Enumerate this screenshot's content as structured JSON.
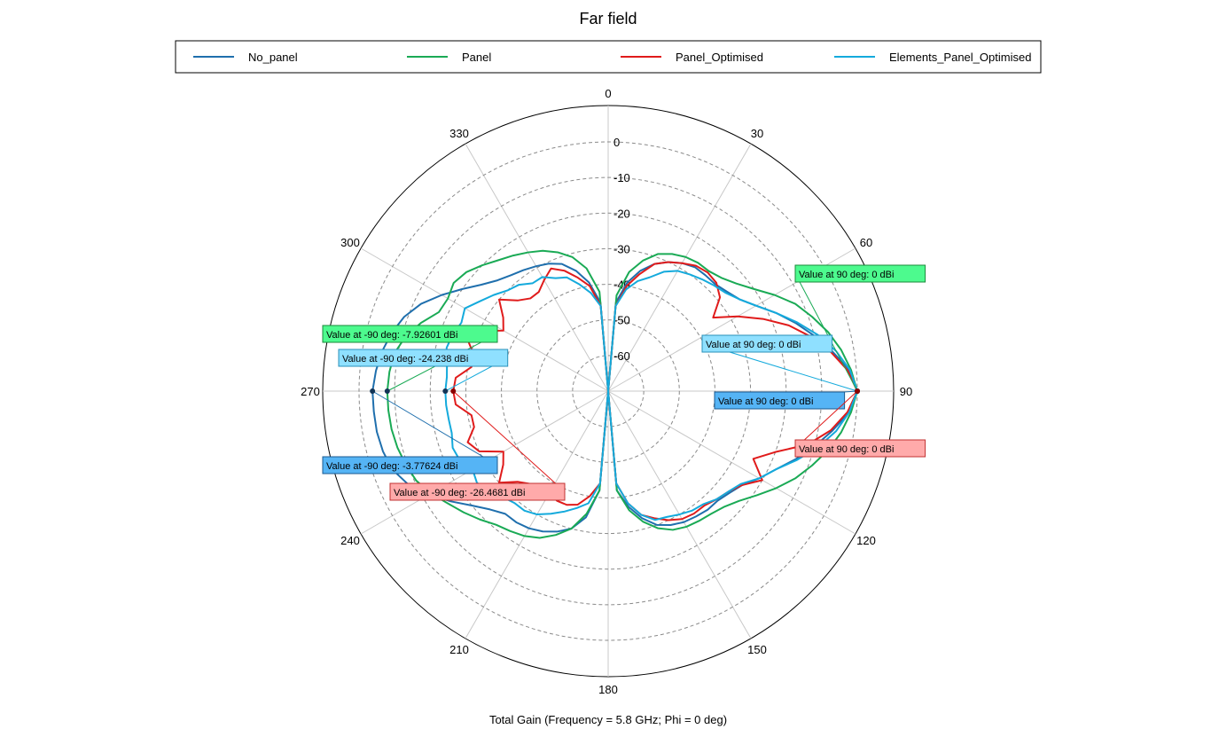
{
  "chart_data": {
    "type": "polar-line",
    "title": "Far field",
    "subtitle": "Total Gain (Frequency = 5.8 GHz; Phi = 0 deg)",
    "legend_position": "top",
    "angle_unit": "deg",
    "angle_zero": "top",
    "angle_direction": "clockwise",
    "angle_ticks": [
      0,
      30,
      60,
      90,
      120,
      150,
      180,
      210,
      240,
      270,
      300,
      330
    ],
    "radial_range": [
      -70,
      0
    ],
    "radial_ticks": [
      0,
      -10,
      -20,
      -30,
      -40,
      -50,
      -60
    ],
    "radial_tick_labels": [
      "0",
      "-10",
      "-20",
      "-30",
      "-40",
      "-50",
      "-60"
    ],
    "radial_unit": "dBi",
    "series": [
      {
        "name": "No_panel",
        "color": "#1f6fad",
        "theta": [
          0,
          5,
          10,
          15,
          20,
          25,
          30,
          35,
          40,
          45,
          50,
          55,
          60,
          65,
          70,
          75,
          80,
          85,
          90,
          95,
          100,
          105,
          110,
          115,
          120,
          125,
          130,
          135,
          140,
          145,
          150,
          155,
          160,
          165,
          170,
          175,
          180,
          185,
          190,
          195,
          200,
          205,
          210,
          215,
          220,
          225,
          230,
          235,
          240,
          245,
          250,
          255,
          260,
          265,
          270,
          275,
          280,
          285,
          290,
          295,
          300,
          305,
          310,
          315,
          320,
          325,
          330,
          335,
          340,
          345,
          350,
          355
        ],
        "gain": [
          -70,
          -45,
          -39,
          -35,
          -32,
          -30,
          -28.5,
          -27.5,
          -27.5,
          -27.5,
          -26.5,
          -25,
          -22,
          -18,
          -14,
          -10,
          -6,
          -2,
          0,
          -2,
          -6,
          -10,
          -14,
          -18,
          -21,
          -24,
          -25.5,
          -26.5,
          -26.5,
          -27,
          -27.5,
          -28.5,
          -30,
          -33,
          -37,
          -42,
          -70,
          -42,
          -34,
          -30,
          -28,
          -26.5,
          -25.5,
          -25,
          -25,
          -23,
          -20,
          -16,
          -12,
          -8,
          -5.5,
          -4.5,
          -4,
          -3.9,
          -3.78,
          -4.5,
          -5.5,
          -7,
          -9,
          -12,
          -16,
          -20,
          -23.5,
          -26,
          -27.5,
          -28.5,
          -29.5,
          -30.5,
          -32,
          -35,
          -39,
          -45
        ]
      },
      {
        "name": "Panel",
        "color": "#1aaa55",
        "theta": [
          0,
          5,
          10,
          15,
          20,
          25,
          30,
          35,
          40,
          45,
          50,
          55,
          60,
          65,
          70,
          75,
          80,
          85,
          90,
          95,
          100,
          105,
          110,
          115,
          120,
          125,
          130,
          135,
          140,
          145,
          150,
          155,
          160,
          165,
          170,
          175,
          180,
          185,
          190,
          195,
          200,
          205,
          210,
          215,
          220,
          225,
          230,
          235,
          240,
          245,
          250,
          255,
          260,
          265,
          270,
          275,
          280,
          285,
          290,
          295,
          300,
          305,
          310,
          315,
          320,
          325,
          330,
          335,
          340,
          345,
          350,
          355
        ],
        "gain": [
          -70,
          -43,
          -36,
          -32,
          -29,
          -27.5,
          -26.5,
          -26,
          -26,
          -25,
          -23,
          -20,
          -16,
          -12,
          -9,
          -6,
          -3.5,
          -1.5,
          0,
          -1.5,
          -3.5,
          -6,
          -9,
          -12,
          -15.5,
          -19,
          -22,
          -24,
          -25,
          -25.5,
          -26,
          -27,
          -29,
          -32,
          -36,
          -42,
          -70,
          -42,
          -35,
          -30,
          -27,
          -24.5,
          -23,
          -22,
          -21,
          -19,
          -17,
          -15,
          -12.5,
          -10.5,
          -9.5,
          -8.7,
          -8.2,
          -8,
          -7.93,
          -8.3,
          -9,
          -11,
          -14,
          -17.5,
          -18,
          -17,
          -18,
          -20,
          -22,
          -23.5,
          -25,
          -26.5,
          -28.5,
          -31,
          -35,
          -42
        ]
      },
      {
        "name": "Panel_Optimised",
        "color": "#e01b1b",
        "theta": [
          0,
          5,
          10,
          15,
          20,
          25,
          30,
          35,
          40,
          45,
          50,
          55,
          60,
          65,
          70,
          75,
          80,
          85,
          90,
          95,
          100,
          105,
          110,
          115,
          120,
          125,
          130,
          135,
          140,
          145,
          150,
          155,
          160,
          165,
          170,
          175,
          180,
          185,
          190,
          195,
          200,
          205,
          210,
          215,
          220,
          225,
          230,
          235,
          240,
          245,
          250,
          255,
          260,
          265,
          270,
          275,
          280,
          285,
          290,
          295,
          300,
          305,
          310,
          315,
          320,
          325,
          330,
          335,
          340,
          345,
          350,
          355
        ],
        "gain": [
          -70,
          -46,
          -40,
          -36,
          -32,
          -30,
          -28.5,
          -27,
          -26.5,
          -27,
          -29,
          -34,
          -28,
          -22,
          -16,
          -11,
          -6.5,
          -2.5,
          0,
          -2.5,
          -6.5,
          -12,
          -20,
          -25,
          -20,
          -24,
          -26,
          -27,
          -28,
          -28,
          -28.5,
          -30,
          -32,
          -34,
          -38,
          -44,
          -70,
          -44,
          -40,
          -37,
          -36,
          -36,
          -37,
          -38,
          -36,
          -34,
          -30,
          -34,
          -36,
          -30,
          -28,
          -31,
          -31,
          -27,
          -26.47,
          -27,
          -31,
          -31,
          -28,
          -30,
          -36,
          -34,
          -30,
          -34,
          -36,
          -36,
          -34,
          -32,
          -34,
          -37,
          -40,
          -46
        ]
      },
      {
        "name": "Elements_Panel_Optimised",
        "color": "#14aadc",
        "theta": [
          0,
          5,
          10,
          15,
          20,
          25,
          30,
          35,
          40,
          45,
          50,
          55,
          60,
          65,
          70,
          75,
          80,
          85,
          90,
          95,
          100,
          105,
          110,
          115,
          120,
          125,
          130,
          135,
          140,
          145,
          150,
          155,
          160,
          165,
          170,
          175,
          180,
          185,
          190,
          195,
          200,
          205,
          210,
          215,
          220,
          225,
          230,
          235,
          240,
          245,
          250,
          255,
          260,
          265,
          270,
          275,
          280,
          285,
          290,
          295,
          300,
          305,
          310,
          315,
          320,
          325,
          330,
          335,
          340,
          345,
          350,
          355
        ],
        "gain": [
          -70,
          -46,
          -41,
          -38,
          -36,
          -33,
          -31,
          -30,
          -29,
          -28,
          -27,
          -25,
          -22,
          -18,
          -13.5,
          -9,
          -5,
          -1.8,
          0,
          -2,
          -5,
          -9,
          -13.5,
          -18,
          -21,
          -24.5,
          -26,
          -27,
          -28.5,
          -29,
          -30,
          -31,
          -31.5,
          -34,
          -38,
          -44,
          -70,
          -44,
          -38,
          -36,
          -34,
          -32,
          -30,
          -29,
          -29,
          -28,
          -27,
          -25,
          -26,
          -24,
          -23.5,
          -24.5,
          -24.5,
          -24.3,
          -24.24,
          -24.5,
          -24,
          -23,
          -23.5,
          -24.5,
          -23.5,
          -26,
          -28,
          -30,
          -31,
          -33,
          -33,
          -35,
          -36,
          -39,
          -42,
          -46
        ]
      }
    ],
    "annotations": [
      {
        "series": "Panel",
        "text": "Value at 90 deg: 0 dBi",
        "theta": 90,
        "gain": 0
      },
      {
        "series": "Elements_Panel_Optimised",
        "text": "Value at 90 deg: 0 dBi",
        "theta": 90,
        "gain": 0
      },
      {
        "series": "No_panel",
        "text": "Value at 90 deg: 0 dBi",
        "theta": 90,
        "gain": 0
      },
      {
        "series": "Panel_Optimised",
        "text": "Value at 90 deg: 0 dBi",
        "theta": 90,
        "gain": 0
      },
      {
        "series": "Panel",
        "text": "Value at -90 deg: -7.92601 dBi",
        "theta": 270,
        "gain": -7.92601
      },
      {
        "series": "Elements_Panel_Optimised",
        "text": "Value at -90 deg: -24.238 dBi",
        "theta": 270,
        "gain": -24.238
      },
      {
        "series": "No_panel",
        "text": "Value at -90 deg: -3.77624 dBi",
        "theta": 270,
        "gain": -3.77624
      },
      {
        "series": "Panel_Optimised",
        "text": "Value at -90 deg: -26.4681 dBi",
        "theta": 270,
        "gain": -26.4681
      }
    ],
    "annotation_colors": {
      "Panel": {
        "fill": "#4dfa8e",
        "stroke": "#1a8a3a"
      },
      "Elements_Panel_Optimised": {
        "fill": "#8fe0ff",
        "stroke": "#2a90b8"
      },
      "No_panel": {
        "fill": "#55b4f5",
        "stroke": "#1a5a90"
      },
      "Panel_Optimised": {
        "fill": "#ffaaaa",
        "stroke": "#c03030"
      }
    }
  }
}
